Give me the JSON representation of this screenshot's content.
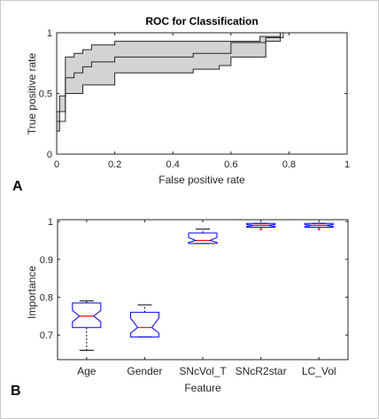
{
  "chart_data": [
    {
      "type": "area",
      "panel_label": "A",
      "title": "ROC for Classification",
      "xlabel": "False positive rate",
      "ylabel": "True positive rate",
      "xlim": [
        0,
        1
      ],
      "ylim": [
        0,
        1
      ],
      "xticks": [
        0,
        0.2,
        0.4,
        0.6,
        0.8,
        1
      ],
      "xtick_labels": [
        "0",
        "0.2",
        "0.4",
        "0.6",
        "0.8",
        "1"
      ],
      "yticks": [
        0,
        0.5,
        1
      ],
      "ytick_labels": [
        "0",
        "0.5",
        "1"
      ],
      "grid": false,
      "band_color": "#d3d3d3",
      "line_color": "#262626",
      "series": [
        {
          "role": "upper",
          "x": [
            0,
            0.03,
            0.03,
            0.06,
            0.06,
            0.09,
            0.09,
            0.12,
            0.12,
            0.2,
            0.2,
            0.7,
            0.7,
            0.77,
            0.77,
            1
          ],
          "y": [
            0.35,
            0.35,
            0.8,
            0.8,
            0.83,
            0.83,
            0.86,
            0.86,
            0.9,
            0.9,
            0.93,
            0.93,
            0.97,
            0.97,
            1,
            1
          ]
        },
        {
          "role": "mean",
          "x": [
            0,
            0.03,
            0.03,
            0.06,
            0.06,
            0.09,
            0.09,
            0.12,
            0.12,
            0.2,
            0.2,
            0.47,
            0.47,
            0.6,
            0.6,
            0.72,
            0.72,
            0.78,
            0.78,
            1
          ],
          "y": [
            0.27,
            0.27,
            0.63,
            0.63,
            0.67,
            0.67,
            0.72,
            0.72,
            0.76,
            0.76,
            0.8,
            0.8,
            0.83,
            0.83,
            0.92,
            0.92,
            0.96,
            0.96,
            1,
            1
          ]
        },
        {
          "role": "lower",
          "x": [
            0,
            0.01,
            0.01,
            0.03,
            0.03,
            0.09,
            0.09,
            0.2,
            0.2,
            0.47,
            0.47,
            0.56,
            0.56,
            0.6,
            0.6,
            0.72,
            0.72,
            0.77,
            0.77,
            1
          ],
          "y": [
            0.19,
            0.19,
            0.48,
            0.48,
            0.5,
            0.5,
            0.57,
            0.57,
            0.67,
            0.67,
            0.7,
            0.7,
            0.73,
            0.73,
            0.8,
            0.8,
            0.93,
            0.93,
            1,
            1
          ]
        }
      ]
    },
    {
      "type": "box",
      "panel_label": "B",
      "xlabel": "Feature",
      "ylabel": "Importance",
      "categories": [
        "Age",
        "Gender",
        "SNcVol_T",
        "SNcR2star",
        "LC_Vol"
      ],
      "ylim": [
        0.635,
        1.005
      ],
      "yticks": [
        0.7,
        0.8,
        0.9,
        1
      ],
      "ytick_labels": [
        "0.7",
        "0.8",
        "0.9",
        "1"
      ],
      "grid": false,
      "box_color": "#0000ff",
      "median_color": "#ff0000",
      "whisker_color": "#000000",
      "boxes": [
        {
          "whisker_low": 0.66,
          "q1": 0.72,
          "median": 0.75,
          "q3": 0.785,
          "whisker_high": 0.79,
          "notch_low": 0.735,
          "notch_high": 0.765,
          "outliers": []
        },
        {
          "whisker_low": 0.695,
          "q1": 0.695,
          "median": 0.72,
          "q3": 0.76,
          "whisker_high": 0.78,
          "notch_low": 0.705,
          "notch_high": 0.745,
          "outliers": []
        },
        {
          "whisker_low": 0.942,
          "q1": 0.942,
          "median": 0.95,
          "q3": 0.97,
          "whisker_high": 0.98,
          "notch_low": 0.945,
          "notch_high": 0.958,
          "outliers": []
        },
        {
          "whisker_low": 0.985,
          "q1": 0.985,
          "median": 0.99,
          "q3": 0.995,
          "whisker_high": 0.995,
          "notch_low": 0.987,
          "notch_high": 0.992,
          "outliers": [
            0.98
          ]
        },
        {
          "whisker_low": 0.985,
          "q1": 0.985,
          "median": 0.99,
          "q3": 0.995,
          "whisker_high": 0.995,
          "notch_low": 0.987,
          "notch_high": 0.992,
          "outliers": [
            0.98
          ]
        }
      ]
    }
  ]
}
